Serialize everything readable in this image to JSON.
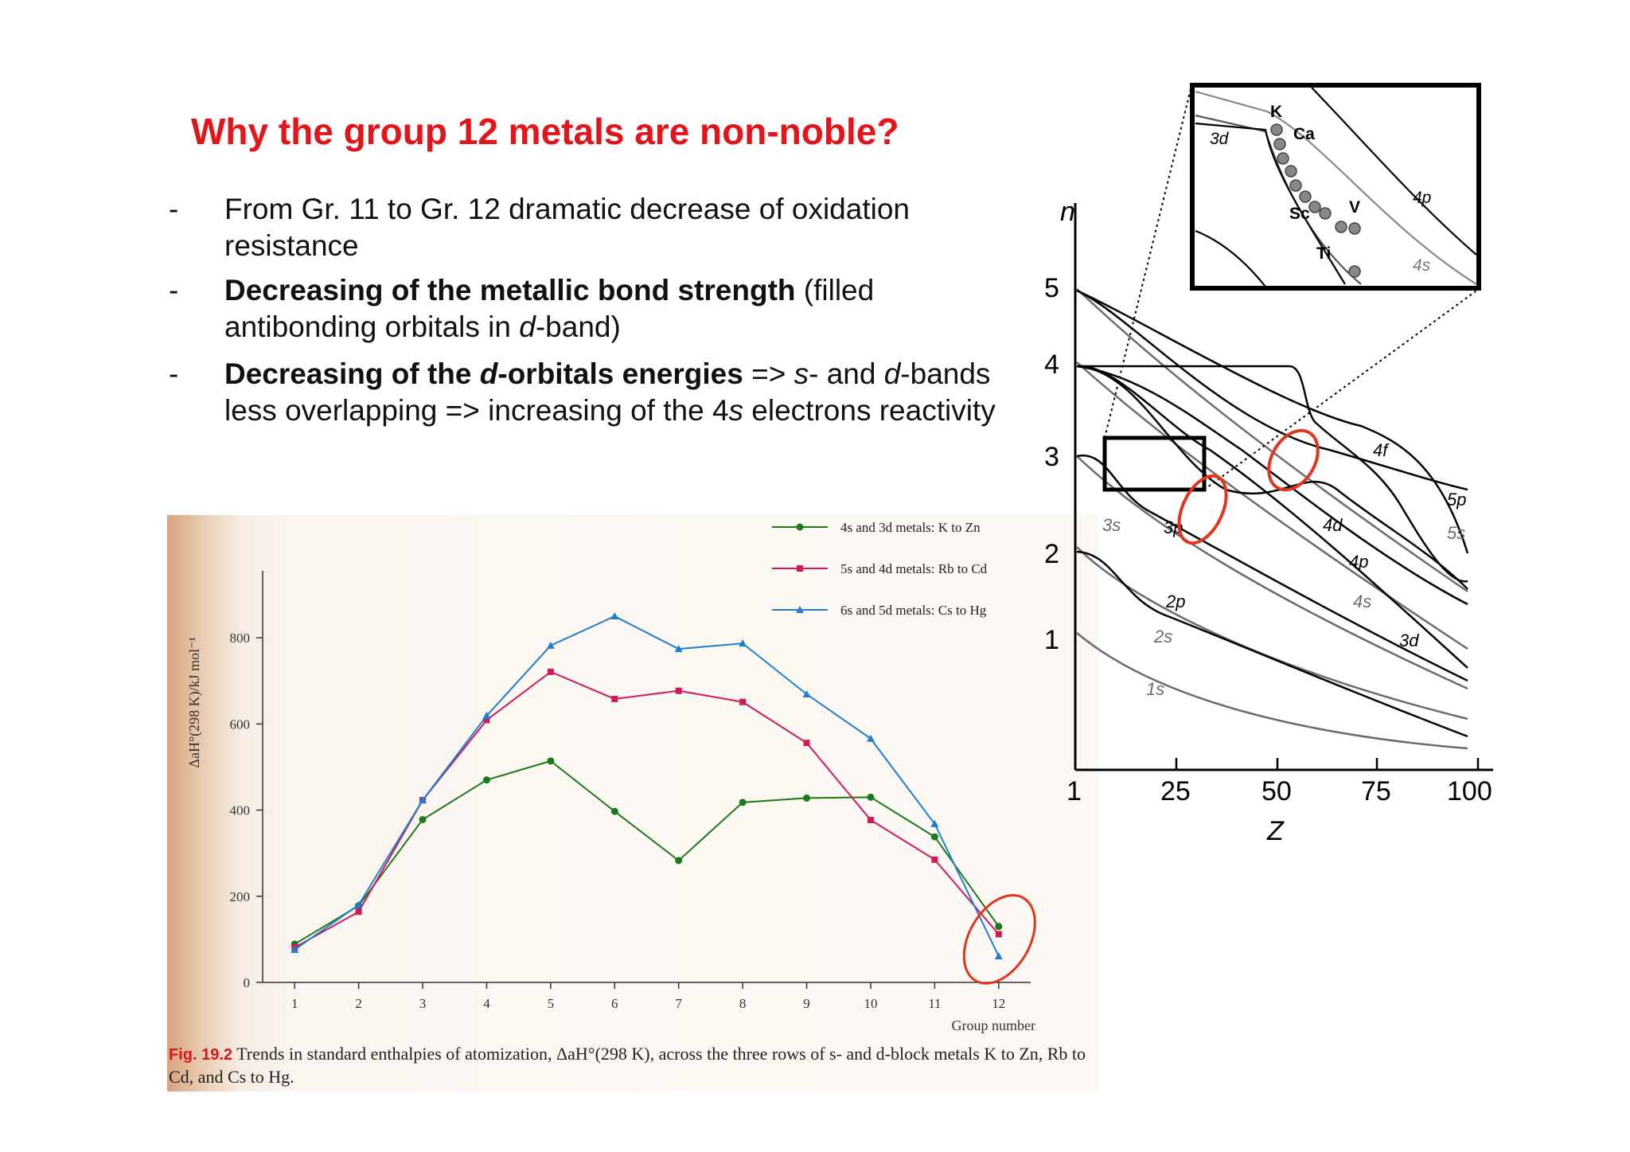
{
  "slide": {
    "title": "Why the group 12 metals are non-noble?",
    "bullets": [
      {
        "dash": "-",
        "text": "From Gr. 11 to Gr. 12 dramatic  decrease of oxidation resistance"
      },
      {
        "dash": "-",
        "bold": "Decreasing of the metallic bond strength",
        "rest": " (filled antibonding orbitals in ",
        "italic": "d",
        "tail": "-band)"
      },
      {
        "dash": "-",
        "bold_a": "Decreasing of the ",
        "bold_i": "d",
        "bold_b": "-orbitals energies",
        "t1": " => ",
        "i1": "s",
        "t2": "- and ",
        "i2": "d",
        "t3": "-bands less overlapping  => increasing of the 4",
        "i3": "s",
        "t4": " electrons reactivity"
      }
    ]
  },
  "figure": {
    "caption_label": "Fig. 19.2",
    "caption_text": " Trends in standard enthalpies of atomization, ΔaH°(298 K), across the three rows of s- and d-block metals K to Zn, Rb to Cd, and Cs to Hg."
  },
  "chart_data": [
    {
      "type": "line",
      "ylabel": "ΔaH°(298 K)/kJ mol⁻¹",
      "xlabel": "Group number",
      "x": [
        1,
        2,
        3,
        4,
        5,
        6,
        7,
        8,
        9,
        10,
        11,
        12
      ],
      "xlim": [
        0.5,
        12.5
      ],
      "ylim": [
        0,
        900
      ],
      "yticks": [
        0,
        200,
        400,
        600,
        800
      ],
      "legend_position": "top-right",
      "highlight": "group 12 circled",
      "series": [
        {
          "name": "4s and 3d metals: K to Zn",
          "color": "#1b7a1b",
          "marker": "circle",
          "values": [
            89,
            178,
            378,
            470,
            514,
            397,
            283,
            418,
            428,
            430,
            338,
            130
          ]
        },
        {
          "name": "5s and 4d metals: Rb to Cd",
          "color": "#d11a5a",
          "marker": "square",
          "values": [
            81,
            164,
            423,
            609,
            721,
            658,
            677,
            651,
            556,
            377,
            285,
            112
          ]
        },
        {
          "name": "6s and 5d metals: Cs to Hg",
          "color": "#1e7fd0",
          "marker": "triangle",
          "values": [
            76,
            180,
            423,
            619,
            782,
            850,
            774,
            787,
            669,
            566,
            368,
            61
          ]
        }
      ]
    },
    {
      "type": "line",
      "ylabel": "n",
      "xlabel": "Z",
      "xlim": [
        1,
        100
      ],
      "xticks": [
        "1",
        "25",
        "50",
        "75",
        "100"
      ],
      "yticks": [
        "1",
        "2",
        "3",
        "4",
        "5"
      ],
      "inset_labels": [
        "K",
        "Ca",
        "Sc",
        "Ti",
        "V",
        "3d",
        "4p",
        "4s"
      ],
      "curve_labels": [
        "1s",
        "2s",
        "2p",
        "3s",
        "3p",
        "3d",
        "4s",
        "4p",
        "4d",
        "4f",
        "5s",
        "5p"
      ]
    }
  ],
  "colors": {
    "title": "#e3151a",
    "highlight_circle": "#e0361b"
  }
}
